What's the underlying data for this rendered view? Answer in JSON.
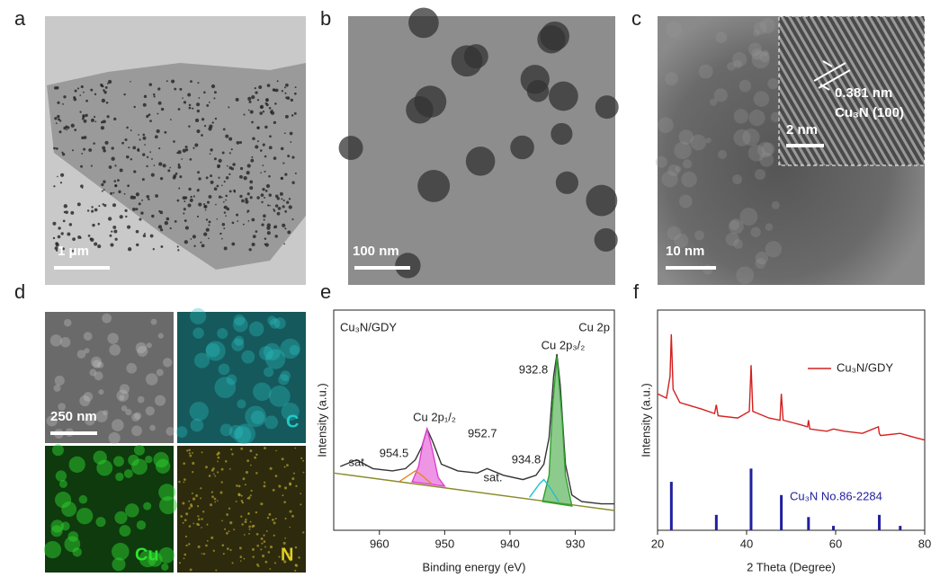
{
  "panels": {
    "labels": [
      "a",
      "b",
      "c",
      "d",
      "e",
      "f"
    ]
  },
  "images": {
    "a_scale": "1 μm",
    "b_scale": "100 nm",
    "c_scale": "10 nm",
    "c_inset_scale": "2 nm",
    "c_spacing": "0.381 nm",
    "c_plane": "Cu₃N (100)",
    "d_scale": "250 nm",
    "d_maps": [
      "C",
      "Cu",
      "N"
    ]
  },
  "chart_data": [
    {
      "type": "line",
      "xlabel": "Binding energy (eV)",
      "ylabel": "Intensity (a.u.)",
      "xlim": [
        967,
        924
      ],
      "ylim": [
        0,
        100
      ],
      "xticks": [
        960,
        950,
        940,
        930
      ],
      "annotations": [
        "Cu₃N/GDY",
        "Cu 2p",
        "Cu 2p₃/₂",
        "932.8",
        "934.8",
        "Cu 2p₁/₂",
        "952.7",
        "954.5",
        "sat.",
        "sat."
      ],
      "series": [
        {
          "color": "#333333",
          "x": [
            966,
            963.5,
            961,
            958,
            956,
            954.5,
            953.5,
            952.7,
            951.8,
            950.5,
            948,
            945,
            943.5,
            941,
            938,
            936,
            934.8,
            934,
            933.3,
            932.8,
            932.3,
            931.5,
            930.5,
            929,
            926,
            924
          ],
          "values": [
            29,
            32,
            28,
            27,
            28,
            32,
            38,
            46,
            40,
            30,
            27,
            26,
            28,
            25,
            23,
            25,
            30,
            42,
            70,
            80,
            66,
            30,
            16,
            13,
            12,
            12
          ]
        },
        {
          "color": "#8a8a2a",
          "x": [
            967,
            924
          ],
          "values": [
            26,
            9
          ]
        },
        {
          "color": "#2ea02e",
          "fill": true,
          "x": [
            935,
            934,
            933.5,
            932.8,
            932,
            931.5,
            930.5
          ],
          "values": [
            13,
            25,
            55,
            79,
            50,
            25,
            11
          ]
        },
        {
          "color": "#22c0d0",
          "x": [
            937,
            935.5,
            934.8,
            934,
            932.5
          ],
          "values": [
            15,
            21,
            23,
            20,
            13
          ]
        },
        {
          "color": "#e040d0",
          "fill": true,
          "x": [
            955,
            954,
            953.3,
            952.7,
            952,
            951,
            950
          ],
          "values": [
            22,
            29,
            40,
            46,
            38,
            24,
            20
          ]
        },
        {
          "color": "#e08a20",
          "x": [
            957,
            955.5,
            954.5,
            953.5,
            952
          ],
          "values": [
            22,
            25,
            27,
            25,
            21
          ]
        }
      ]
    },
    {
      "type": "line",
      "xlabel": "2 Theta (Degree)",
      "ylabel": "Intensity (a.u.)",
      "xlim": [
        20,
        80
      ],
      "ylim": [
        0,
        100
      ],
      "xticks": [
        20,
        40,
        60,
        80
      ],
      "series": [
        {
          "name": "Cu₃N/GDY",
          "color": "#d42020",
          "x": [
            20,
            22,
            22.8,
            23.1,
            23.5,
            25,
            30,
            32.8,
            33.2,
            33.6,
            38,
            40.6,
            41.0,
            41.4,
            45,
            47.5,
            47.8,
            48.2,
            52,
            53.7,
            53.9,
            54.2,
            58,
            59.5,
            62,
            66,
            69.6,
            69.8,
            70.1,
            74.5,
            78,
            80
          ],
          "values": [
            62,
            60,
            70,
            89,
            64,
            58,
            55,
            53,
            57,
            52,
            51,
            54,
            75,
            54,
            51,
            50,
            62,
            50,
            48,
            47,
            50,
            46,
            45,
            46,
            45,
            44,
            47,
            44,
            43,
            44,
            42,
            41
          ]
        },
        {
          "name": "Cu₃N No.86-2284",
          "color": "#2020a0",
          "style": "stick",
          "x": [
            23.1,
            33.2,
            41.0,
            47.8,
            53.9,
            59.5,
            69.8,
            74.5
          ],
          "values": [
            22,
            7,
            28,
            16,
            6,
            2,
            7,
            2
          ]
        }
      ]
    }
  ]
}
